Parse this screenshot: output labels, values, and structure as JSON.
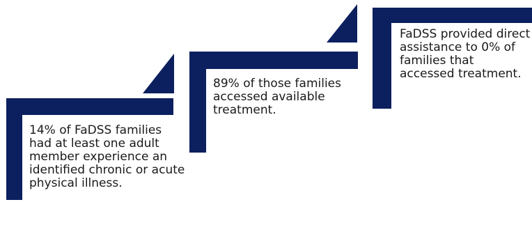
{
  "colors": {
    "shape_fill": "#0c1f5e",
    "text": "#1a1a1a",
    "background": "#ffffff"
  },
  "steps": [
    {
      "text": "14% of FaDSS families had at least one adult member experience an identified chronic or acute physical illness."
    },
    {
      "text": "89% of those families accessed available treatment."
    },
    {
      "text": "FaDSS provided direct assistance to 0% of families that accessed treatment."
    }
  ]
}
